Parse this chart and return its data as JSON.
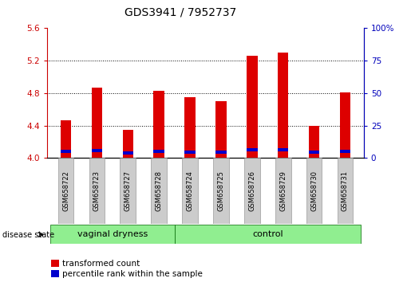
{
  "title": "GDS3941 / 7952737",
  "samples": [
    "GSM658722",
    "GSM658723",
    "GSM658727",
    "GSM658728",
    "GSM658724",
    "GSM658725",
    "GSM658726",
    "GSM658729",
    "GSM658730",
    "GSM658731"
  ],
  "red_values": [
    4.46,
    4.87,
    4.35,
    4.83,
    4.75,
    4.7,
    5.26,
    5.3,
    4.4,
    4.81
  ],
  "blue_values": [
    4.08,
    4.09,
    4.06,
    4.08,
    4.07,
    4.07,
    4.1,
    4.1,
    4.07,
    4.08
  ],
  "ylim": [
    4.0,
    5.6
  ],
  "yticks": [
    4.0,
    4.4,
    4.8,
    5.2,
    5.6
  ],
  "right_yticks": [
    0,
    25,
    50,
    75,
    100
  ],
  "right_ylabels": [
    "0",
    "25",
    "50",
    "75",
    "100%"
  ],
  "groups": [
    {
      "label": "vaginal dryness",
      "start": 0,
      "end": 4
    },
    {
      "label": "control",
      "start": 4,
      "end": 10
    }
  ],
  "bar_color_red": "#dd0000",
  "bar_color_blue": "#0000cc",
  "bar_width": 0.35,
  "ylim_min": 4.0,
  "ylim_max": 5.6,
  "left_label_color": "#cc0000",
  "right_label_color": "#0000bb",
  "group_fill_color": "#90ee90",
  "group_edge_color": "#006600",
  "sample_box_color": "#cccccc",
  "disease_state_label": "disease state",
  "legend_red": "transformed count",
  "legend_blue": "percentile rank within the sample",
  "title_fontsize": 10,
  "tick_fontsize": 7.5,
  "sample_fontsize": 6,
  "group_fontsize": 8,
  "legend_fontsize": 7.5
}
